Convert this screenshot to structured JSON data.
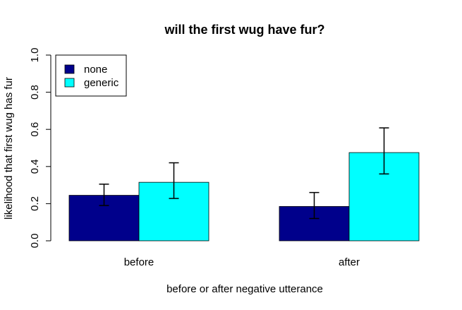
{
  "chart_data": {
    "type": "bar",
    "title": "will the first wug have fur?",
    "xlabel": "before or after negative utterance",
    "ylabel": "likelihood that first wug has fur",
    "categories": [
      "before",
      "after"
    ],
    "series": [
      {
        "name": "none",
        "color": "#00008B",
        "values": [
          0.245,
          0.185
        ],
        "error_low": [
          0.19,
          0.12
        ],
        "error_high": [
          0.305,
          0.26
        ]
      },
      {
        "name": "generic",
        "color": "#00FFFF",
        "values": [
          0.315,
          0.475
        ],
        "error_low": [
          0.228,
          0.36
        ],
        "error_high": [
          0.42,
          0.608
        ]
      }
    ],
    "ylim": [
      0,
      1
    ],
    "yticks": [
      "0.0",
      "0.2",
      "0.4",
      "0.6",
      "0.8",
      "1.0"
    ],
    "legend_position": "top-left",
    "grid": false
  }
}
